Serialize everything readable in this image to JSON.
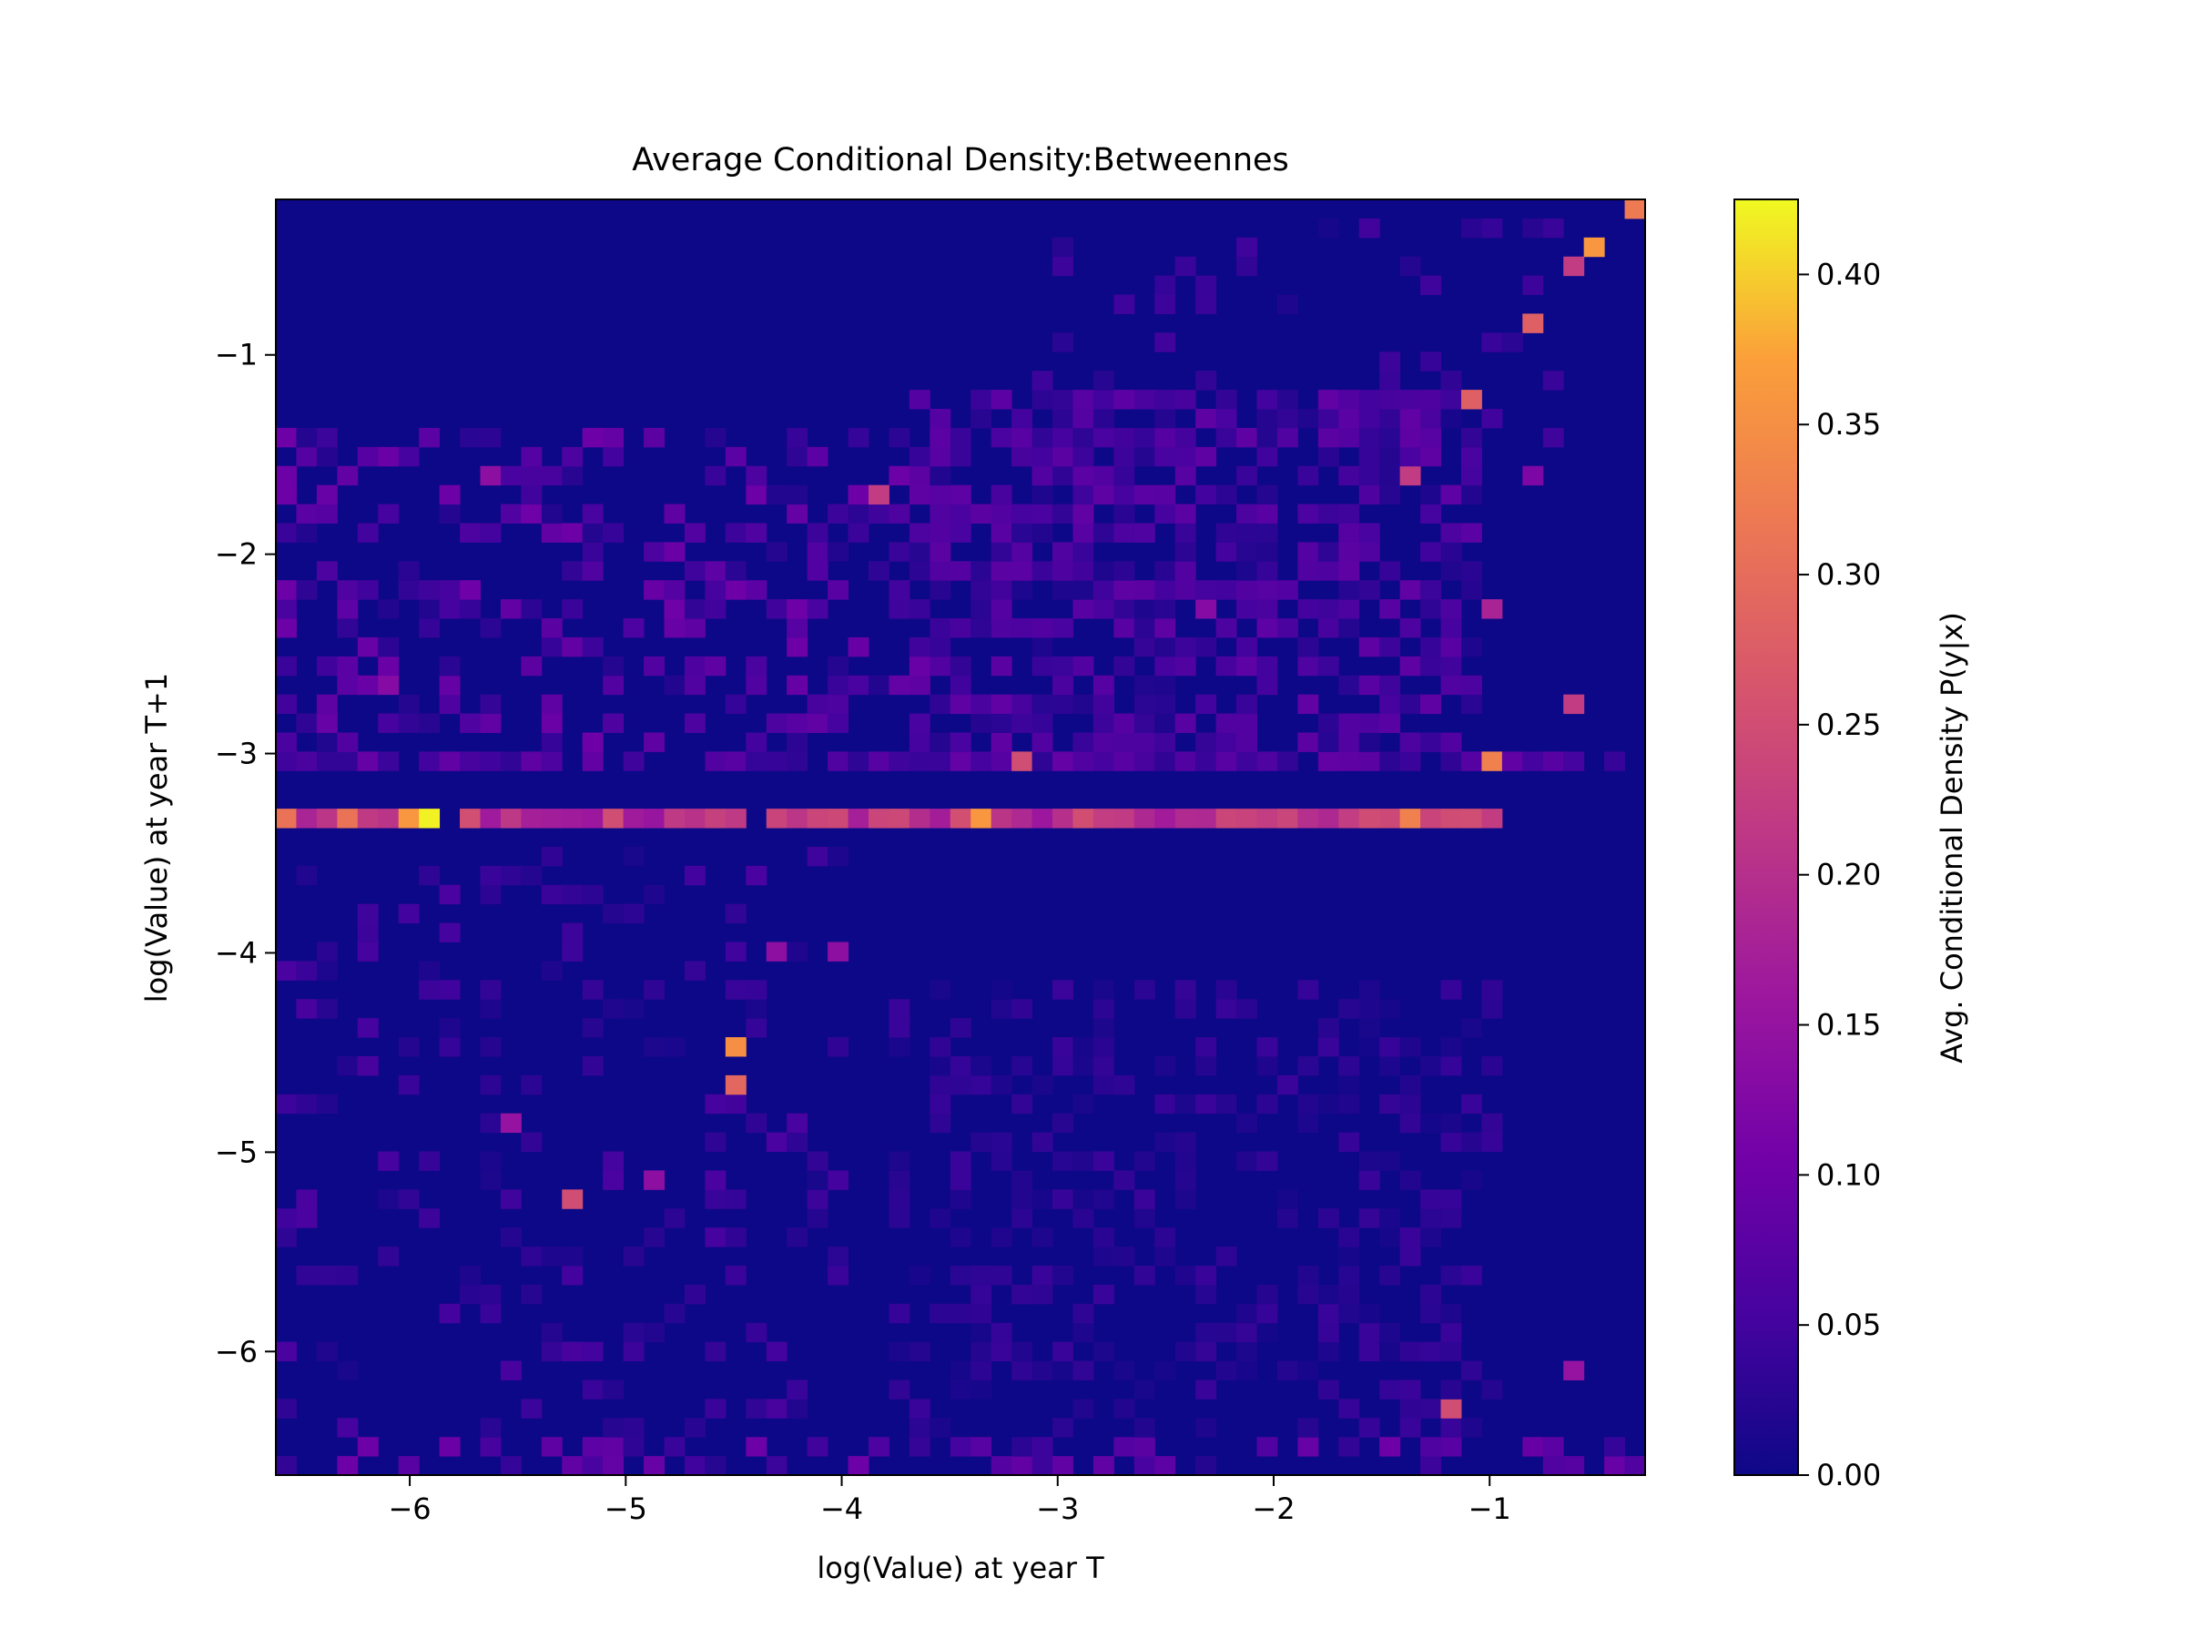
{
  "chart_data": {
    "type": "heatmap",
    "title": "Average Conditional Density:Betweennes",
    "xlabel": "log(Value) at year T",
    "ylabel": "log(Value) at year T+1",
    "xlim": [
      -6.62,
      -0.28
    ],
    "ylim": [
      -6.62,
      -0.22
    ],
    "x_ticks": [
      -6,
      -5,
      -4,
      -3,
      -2,
      -1
    ],
    "y_ticks": [
      -6,
      -5,
      -4,
      -3,
      -2,
      -1
    ],
    "x_tick_labels": [
      "−6",
      "−5",
      "−4",
      "−3",
      "−2",
      "−1"
    ],
    "y_tick_labels": [
      "−6",
      "−5",
      "−4",
      "−3",
      "−2",
      "−1"
    ],
    "bins": {
      "nx": 67,
      "ny": 67
    },
    "colormap": "plasma",
    "background_value": 0.0,
    "colorbar": {
      "label": "Avg. Conditional Density P(y|x)",
      "range": [
        0.0,
        0.425
      ],
      "ticks": [
        0.0,
        0.05,
        0.1,
        0.15,
        0.2,
        0.25,
        0.3,
        0.35,
        0.4
      ],
      "tick_labels": [
        "0.00",
        "0.05",
        "0.10",
        "0.15",
        "0.20",
        "0.25",
        "0.30",
        "0.35",
        "0.40"
      ]
    },
    "features": {
      "band": {
        "y": -3.29,
        "x_from": -6.55,
        "x_to": -0.95,
        "base_value": 0.22
      },
      "band_peaks": [
        {
          "x": -5.87,
          "y": -3.29,
          "value": 0.42
        },
        {
          "x": -5.97,
          "y": -3.29,
          "value": 0.36
        },
        {
          "x": -3.31,
          "y": -3.29,
          "value": 0.36
        },
        {
          "x": -1.38,
          "y": -3.29,
          "value": 0.33
        },
        {
          "x": -6.55,
          "y": -3.29,
          "value": 0.31
        },
        {
          "x": -6.33,
          "y": -3.29,
          "value": 0.31
        }
      ],
      "secondary_band": {
        "y": -3.02,
        "x_from": -6.55,
        "x_to": -0.45,
        "base_value": 0.05
      },
      "hotspots": [
        {
          "x": -0.34,
          "y": -0.31,
          "value": 0.32
        },
        {
          "x": -0.49,
          "y": -0.48,
          "value": 0.36
        },
        {
          "x": -0.63,
          "y": -0.6,
          "value": 0.22
        },
        {
          "x": -0.82,
          "y": -0.84,
          "value": 0.28
        },
        {
          "x": -1.1,
          "y": -1.27,
          "value": 0.28
        },
        {
          "x": -1.38,
          "y": -1.57,
          "value": 0.22
        },
        {
          "x": -4.49,
          "y": -4.49,
          "value": 0.35
        },
        {
          "x": -4.49,
          "y": -4.66,
          "value": 0.29
        },
        {
          "x": -1.03,
          "y": -3.02,
          "value": 0.33
        },
        {
          "x": -3.17,
          "y": -3.02,
          "value": 0.25
        },
        {
          "x": -1.21,
          "y": -6.29,
          "value": 0.25
        },
        {
          "x": -5.25,
          "y": -5.22,
          "value": 0.25
        },
        {
          "x": -3.86,
          "y": -1.7,
          "value": 0.22
        },
        {
          "x": -0.63,
          "y": -2.74,
          "value": 0.22
        },
        {
          "x": -1.03,
          "y": -2.3,
          "value": 0.18
        },
        {
          "x": -4.04,
          "y": -4.03,
          "value": 0.14
        },
        {
          "x": -4.28,
          "y": -4.03,
          "value": 0.14
        },
        {
          "x": -0.63,
          "y": -6.12,
          "value": 0.15
        },
        {
          "x": -5.52,
          "y": -4.85,
          "value": 0.15
        },
        {
          "x": -4.89,
          "y": -5.12,
          "value": 0.14
        },
        {
          "x": -5.65,
          "y": -1.56,
          "value": 0.14
        },
        {
          "x": -6.06,
          "y": -2.66,
          "value": 0.13
        },
        {
          "x": -2.31,
          "y": -2.27,
          "value": 0.13
        },
        {
          "x": -0.82,
          "y": -1.65,
          "value": 0.12
        }
      ],
      "scatter_regions": [
        {
          "x_from": -3.6,
          "x_to": -1.05,
          "y_from": -3.0,
          "y_to": -1.25,
          "value": 0.05,
          "fill": 0.62
        },
        {
          "x_from": -6.55,
          "x_to": -3.6,
          "y_from": -3.0,
          "y_to": -1.45,
          "value": 0.06,
          "fill": 0.34
        },
        {
          "x_from": -3.7,
          "x_to": -1.0,
          "y_from": -6.4,
          "y_to": -4.2,
          "value": 0.025,
          "fill": 0.33
        },
        {
          "x_from": -6.55,
          "x_to": -4.0,
          "y_from": -6.4,
          "y_to": -3.5,
          "value": 0.035,
          "fill": 0.16
        },
        {
          "x_from": -3.2,
          "x_to": -0.7,
          "y_from": -1.4,
          "y_to": -0.4,
          "value": 0.03,
          "fill": 0.2
        },
        {
          "x_from": -6.55,
          "x_to": -0.3,
          "y_from": -6.55,
          "y_to": -6.45,
          "value": 0.06,
          "fill": 0.38
        }
      ]
    }
  }
}
